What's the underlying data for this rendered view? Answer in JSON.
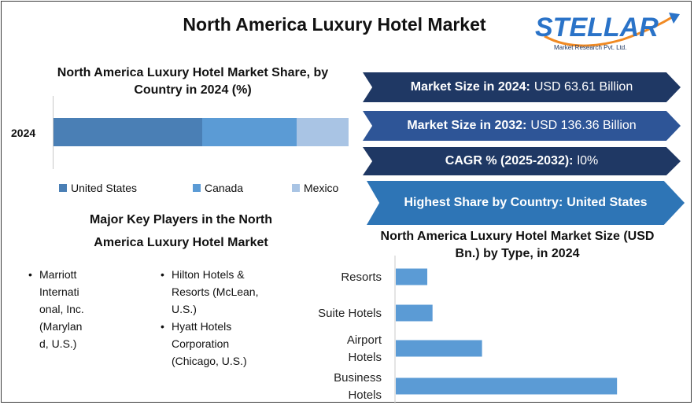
{
  "title": "North America Luxury Hotel Market",
  "logo": {
    "brand": "STELLAR",
    "tagline": "Market Research Pvt. Ltd."
  },
  "share_chart": {
    "title_line1": "North America Luxury Hotel Market Share, by",
    "title_line2": "Country in 2024 (%)",
    "row_label": "2024"
  },
  "key_players": {
    "title_line1": "Major Key Players in the North",
    "title_line2": "America Luxury Hotel Market",
    "bullet": "•",
    "players": [
      {
        "lines": [
          "Marriott",
          "Internati",
          "onal, Inc.",
          "(Marylan",
          "d, U.S.)"
        ]
      },
      {
        "lines": [
          "Hilton Hotels &",
          "Resorts (McLean,",
          "U.S.)"
        ]
      },
      {
        "lines": [
          "Hyatt Hotels",
          "Corporation",
          "(Chicago, U.S.)"
        ]
      }
    ]
  },
  "highlights": [
    {
      "label": "Market Size in 2024:",
      "value": "USD 63.61 Billion"
    },
    {
      "label": "Market Size in 2032:",
      "value": "USD 136.36 Billion"
    },
    {
      "label": "CAGR % (2025-2032):",
      "value": "l0%"
    },
    {
      "label": "Highest Share by Country:",
      "value": "United States"
    }
  ],
  "type_chart_title_line1": "North America Luxury Hotel Market Size (USD",
  "type_chart_title_line2": "Bn.) by Type, in 2024",
  "colors": {
    "united_states": "#4a7fb5",
    "canada": "#5b9bd5",
    "mexico": "#a9c4e4",
    "type_bar": "#5b9bd5",
    "banner_dark": "#1f3864",
    "banner_mid": "#2e5597",
    "banner_light": "#2e75b6"
  },
  "chart_data": [
    {
      "type": "bar",
      "orientation": "horizontal",
      "stacked": true,
      "title": "North America Luxury Hotel Market Share, by Country in 2024 (%)",
      "categories": [
        "2024"
      ],
      "series": [
        {
          "name": "United States",
          "values": [
            50.5
          ]
        },
        {
          "name": "Canada",
          "values": [
            32
          ]
        },
        {
          "name": "Mexico",
          "values": [
            17.5
          ]
        }
      ],
      "xlim": [
        0,
        100
      ],
      "legend": "bottom",
      "grid": false
    },
    {
      "type": "bar",
      "orientation": "horizontal",
      "title": "North America Luxury Hotel Market Size (USD Bn.) by Type, in 2024",
      "categories": [
        [
          "Resorts"
        ],
        [
          "Suite Hotels"
        ],
        [
          "Airport",
          "Hotels"
        ],
        [
          "Business",
          "Hotels"
        ]
      ],
      "values": [
        4.2,
        4.9,
        11.5,
        29.5
      ],
      "xlim": [
        0,
        32
      ],
      "grid": false
    }
  ]
}
